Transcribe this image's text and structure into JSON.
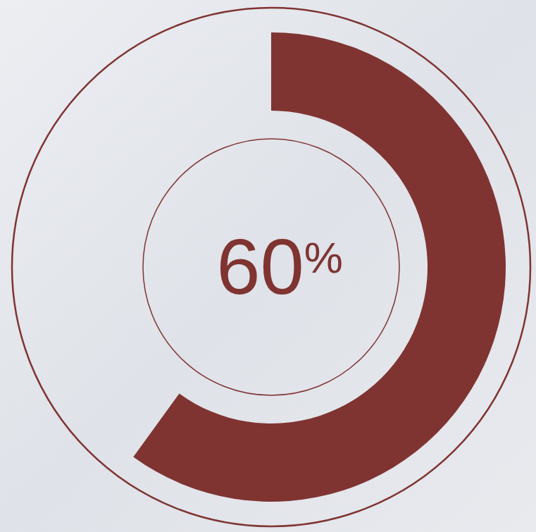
{
  "chart_data": {
    "type": "donut",
    "values": [
      60
    ],
    "value_labels": [
      "60%"
    ],
    "ylim": [
      0,
      100
    ],
    "color": "#7f3432",
    "data_labels": true
  }
}
